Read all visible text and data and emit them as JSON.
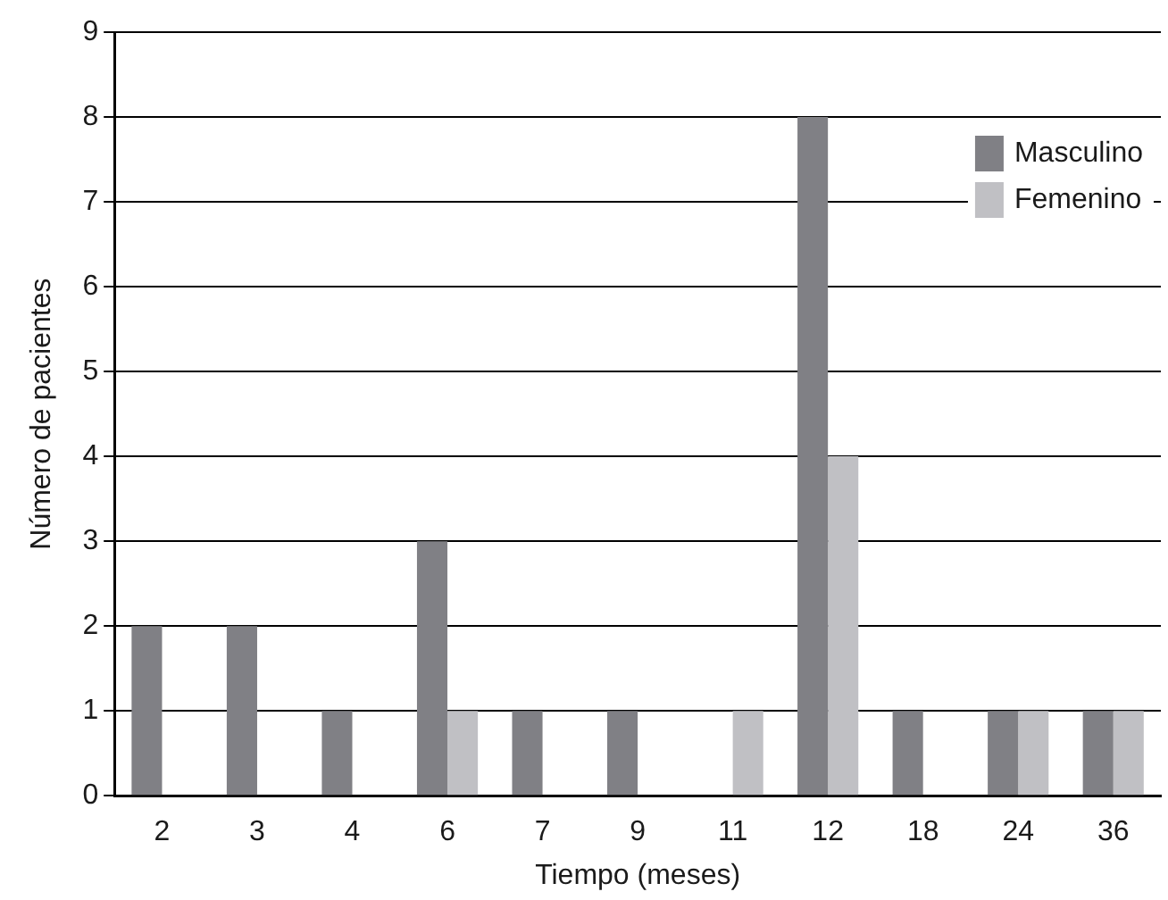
{
  "chart_data": {
    "type": "bar",
    "xlabel": "Tiempo (meses)",
    "ylabel": "Número de pacientes",
    "categories": [
      "2",
      "3",
      "4",
      "6",
      "7",
      "9",
      "11",
      "12",
      "18",
      "24",
      "36"
    ],
    "series": [
      {
        "name": "Masculino",
        "color": "#808085",
        "values": [
          2,
          2,
          1,
          3,
          1,
          1,
          0,
          8,
          1,
          1,
          1
        ]
      },
      {
        "name": "Femenino",
        "color": "#c0c0c4",
        "values": [
          0,
          0,
          0,
          1,
          0,
          0,
          1,
          4,
          0,
          1,
          1
        ]
      }
    ],
    "ylim": [
      0,
      9
    ],
    "yticks": [
      0,
      1,
      2,
      3,
      4,
      5,
      6,
      7,
      8,
      9
    ],
    "grid": "y",
    "legend": "top right"
  }
}
